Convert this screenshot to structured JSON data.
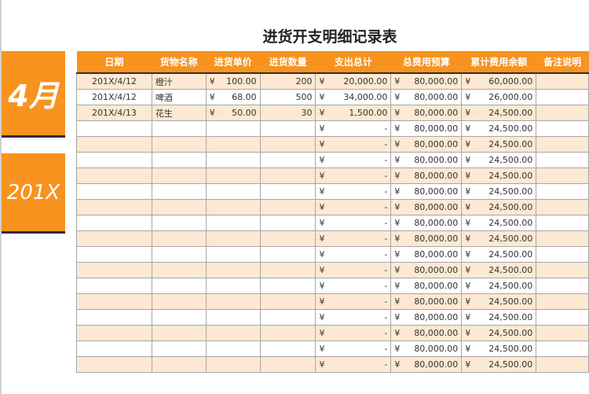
{
  "title": "进货开支明细记录表",
  "side": {
    "month": "4月",
    "year": "201X"
  },
  "colors": {
    "accent": "#f7931e",
    "stripe": "#fde9d3"
  },
  "columns": [
    "日期",
    "货物名称",
    "进货单价",
    "进货数量",
    "支出总计",
    "总费用预算",
    "累计费用余额",
    "备注说明"
  ],
  "currency": "¥",
  "rows": [
    {
      "date": "201X/4/12",
      "item": "橙汁",
      "price": "100.00",
      "qty": "200",
      "total": "20,000.00",
      "budget": "80,000.00",
      "balance": "60,000.00",
      "note": ""
    },
    {
      "date": "201X/4/12",
      "item": "啤酒",
      "price": "68.00",
      "qty": "500",
      "total": "34,000.00",
      "budget": "80,000.00",
      "balance": "26,000.00",
      "note": ""
    },
    {
      "date": "201X/4/13",
      "item": "花生",
      "price": "50.00",
      "qty": "30",
      "total": "1,500.00",
      "budget": "80,000.00",
      "balance": "24,500.00",
      "note": ""
    },
    {
      "date": "",
      "item": "",
      "price": "",
      "qty": "",
      "total": "-",
      "budget": "80,000.00",
      "balance": "24,500.00",
      "note": ""
    },
    {
      "date": "",
      "item": "",
      "price": "",
      "qty": "",
      "total": "-",
      "budget": "80,000.00",
      "balance": "24,500.00",
      "note": ""
    },
    {
      "date": "",
      "item": "",
      "price": "",
      "qty": "",
      "total": "-",
      "budget": "80,000.00",
      "balance": "24,500.00",
      "note": ""
    },
    {
      "date": "",
      "item": "",
      "price": "",
      "qty": "",
      "total": "-",
      "budget": "80,000.00",
      "balance": "24,500.00",
      "note": ""
    },
    {
      "date": "",
      "item": "",
      "price": "",
      "qty": "",
      "total": "-",
      "budget": "80,000.00",
      "balance": "24,500.00",
      "note": ""
    },
    {
      "date": "",
      "item": "",
      "price": "",
      "qty": "",
      "total": "-",
      "budget": "80,000.00",
      "balance": "24,500.00",
      "note": ""
    },
    {
      "date": "",
      "item": "",
      "price": "",
      "qty": "",
      "total": "-",
      "budget": "80,000.00",
      "balance": "24,500.00",
      "note": ""
    },
    {
      "date": "",
      "item": "",
      "price": "",
      "qty": "",
      "total": "-",
      "budget": "80,000.00",
      "balance": "24,500.00",
      "note": ""
    },
    {
      "date": "",
      "item": "",
      "price": "",
      "qty": "",
      "total": "-",
      "budget": "80,000.00",
      "balance": "24,500.00",
      "note": ""
    },
    {
      "date": "",
      "item": "",
      "price": "",
      "qty": "",
      "total": "-",
      "budget": "80,000.00",
      "balance": "24,500.00",
      "note": ""
    },
    {
      "date": "",
      "item": "",
      "price": "",
      "qty": "",
      "total": "-",
      "budget": "80,000.00",
      "balance": "24,500.00",
      "note": ""
    },
    {
      "date": "",
      "item": "",
      "price": "",
      "qty": "",
      "total": "-",
      "budget": "80,000.00",
      "balance": "24,500.00",
      "note": ""
    },
    {
      "date": "",
      "item": "",
      "price": "",
      "qty": "",
      "total": "-",
      "budget": "80,000.00",
      "balance": "24,500.00",
      "note": ""
    },
    {
      "date": "",
      "item": "",
      "price": "",
      "qty": "",
      "total": "-",
      "budget": "80,000.00",
      "balance": "24,500.00",
      "note": ""
    },
    {
      "date": "",
      "item": "",
      "price": "",
      "qty": "",
      "total": "-",
      "budget": "80,000.00",
      "balance": "24,500.00",
      "note": ""
    },
    {
      "date": "",
      "item": "",
      "price": "",
      "qty": "",
      "total": "-",
      "budget": "80,000.00",
      "balance": "24,500.00",
      "note": ""
    }
  ]
}
